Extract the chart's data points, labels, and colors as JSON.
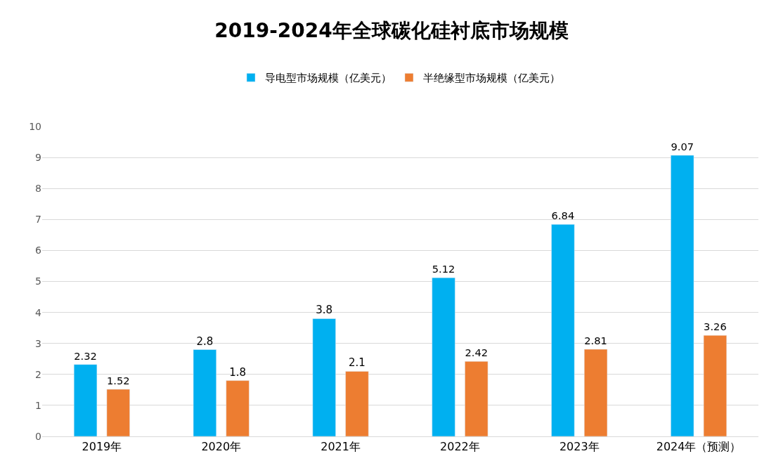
{
  "chart_data": {
    "type": "bar",
    "title": "2019-2024年全球碳化硅衬底市场规模",
    "categories": [
      "2019年",
      "2020年",
      "2021年",
      "2022年",
      "2023年",
      "2024年（预测）"
    ],
    "series": [
      {
        "name": "导电型市场规模（亿美元）",
        "color": "#00b0f0",
        "values": [
          2.32,
          2.8,
          3.8,
          5.12,
          6.84,
          9.07
        ]
      },
      {
        "name": "半绝缘型市场规模（亿美元）",
        "color": "#ed7d31",
        "values": [
          1.52,
          1.8,
          2.1,
          2.42,
          2.81,
          3.26
        ]
      }
    ],
    "ylim": [
      0,
      10
    ],
    "yticks": [
      0,
      1,
      2,
      3,
      4,
      5,
      6,
      7,
      8,
      9,
      10
    ],
    "grid": "y",
    "legend": "top",
    "data_labels": true
  }
}
